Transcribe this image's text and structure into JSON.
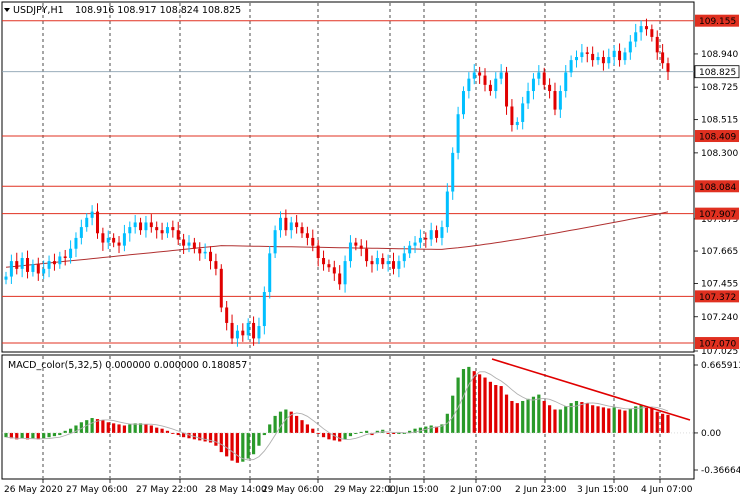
{
  "price_panel": {
    "title": "USDJPY,H1",
    "ohlc": "108.916 108.917 108.824 108.825",
    "axis_ticks": [
      "108.940",
      "108.725",
      "108.515",
      "108.300",
      "107.873",
      "107.665",
      "107.455",
      "107.240",
      "107.025"
    ],
    "levels": [
      {
        "value": "109.155",
        "color": "#e03020"
      },
      {
        "value": "108.409",
        "color": "#e03020"
      },
      {
        "value": "108.084",
        "color": "#e03020"
      },
      {
        "value": "107.907",
        "color": "#e03020"
      },
      {
        "value": "107.372",
        "color": "#e03020"
      },
      {
        "value": "107.070",
        "color": "#e03020"
      }
    ],
    "current_price": "108.825"
  },
  "macd_panel": {
    "title": "MACD_color(5,32,5) 0.000000 0.000000 0.180857",
    "axis_ticks": [
      "0.665913",
      "0.00",
      "-0.366647"
    ]
  },
  "time_axis": [
    "26 May 2020",
    "27 May 06:00",
    "27 May 22:00",
    "28 May 14:00",
    "29 May 06:00",
    "29 May 22:00",
    "1 Jun 15:00",
    "2 Jun 07:00",
    "2 Jun 23:00",
    "3 Jun 15:00",
    "4 Jun 07:00"
  ],
  "colors": {
    "bull": "#00bfff",
    "bear": "#e00000",
    "level": "#e03020",
    "ma": "#b03030",
    "macd_up": "#2a9a2a",
    "macd_down": "#e00000",
    "signal": "#b0b0b0",
    "trend": "#e00000"
  },
  "chart_data": {
    "type": "candlestick",
    "price_levels": [
      109.155,
      108.409,
      108.084,
      107.907,
      107.372,
      107.07
    ],
    "current_price": 108.825,
    "macd_range": [
      -0.366647,
      0.665913
    ]
  }
}
